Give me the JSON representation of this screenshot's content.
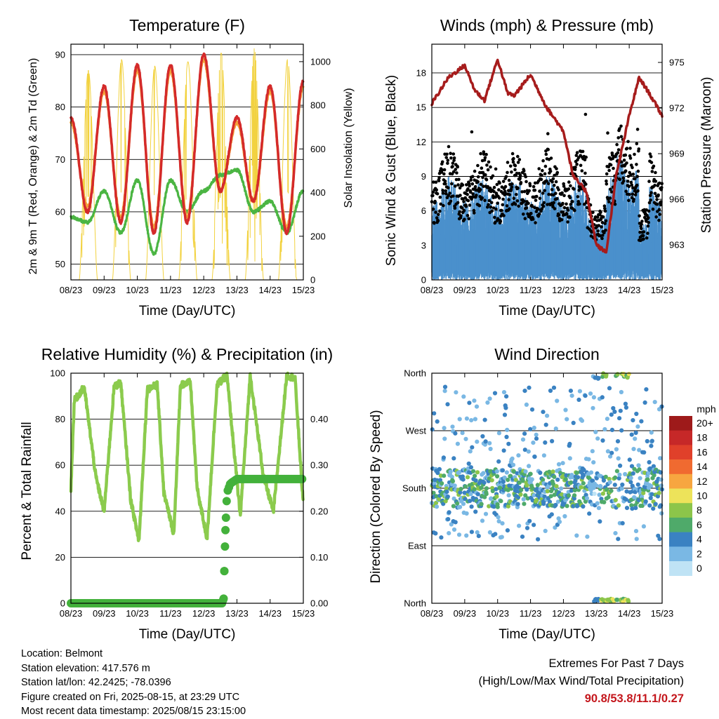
{
  "chart_data": [
    {
      "type": "line",
      "title": "Temperature (F)",
      "xlabel": "Time (Day/UTC)",
      "ylabel": "2m & 9m T (Red, Orange) & 2m Td (Green)",
      "y2label": "Solar Insolation (Yellow)",
      "x_ticks": [
        "08/23",
        "09/23",
        "10/23",
        "11/23",
        "12/23",
        "13/23",
        "14/23",
        "15/23"
      ],
      "y_ticks": [
        50,
        60,
        70,
        80,
        90
      ],
      "y2_ticks": [
        0,
        200,
        400,
        600,
        800,
        1000
      ],
      "ylim": [
        47,
        92
      ],
      "y2lim": [
        0,
        1080
      ],
      "grid": "horizontal",
      "series": [
        {
          "name": "2m T",
          "color": "#d42a2a",
          "values": [
            78,
            60,
            84,
            58,
            88,
            56,
            88,
            58,
            90,
            64,
            78,
            62,
            84,
            56,
            85
          ]
        },
        {
          "name": "9m T",
          "color": "#f4a23a",
          "values": [
            77,
            61,
            83,
            59,
            87,
            57,
            87,
            59,
            89,
            64,
            77,
            62,
            83,
            57,
            84
          ]
        },
        {
          "name": "2m Td",
          "color": "#4bb543",
          "values": [
            59,
            58,
            64,
            56,
            66,
            52,
            66,
            60,
            64,
            67,
            68,
            60,
            62,
            56,
            64
          ]
        },
        {
          "name": "Solar Insolation",
          "color": "#f2d240",
          "axis": "y2",
          "peaks": [
            960,
            1010,
            980,
            1000,
            1040,
            1060,
            1010,
            980
          ]
        }
      ]
    },
    {
      "type": "line",
      "title": "Winds (mph) & Pressure (mb)",
      "xlabel": "Time (Day/UTC)",
      "ylabel": "Sonic Wind & Gust (Blue, Black)",
      "y2label": "Station Pressure (Maroon)",
      "x_ticks": [
        "08/23",
        "09/23",
        "10/23",
        "11/23",
        "12/23",
        "13/23",
        "14/23",
        "15/23"
      ],
      "y_ticks": [
        0,
        3,
        6,
        9,
        12,
        15,
        18
      ],
      "y2_ticks": [
        963,
        966,
        969,
        972,
        975
      ],
      "ylim": [
        0,
        20.5
      ],
      "y2lim": [
        960.7,
        976.2
      ],
      "grid": "horizontal",
      "series": [
        {
          "name": "Station Pressure",
          "color": "#a61c1c",
          "axis": "y2",
          "x": [
            0,
            0.5,
            1,
            1.3,
            1.6,
            2,
            2.3,
            2.5,
            3,
            3.5,
            4,
            4.3,
            4.7,
            5,
            5.3,
            5.6,
            6,
            6.3,
            6.6,
            7
          ],
          "values": [
            972.3,
            974.0,
            974.8,
            973.2,
            972.5,
            975.2,
            973.0,
            972.8,
            974.2,
            972.0,
            970.5,
            967.5,
            966.5,
            963.0,
            962.5,
            967.5,
            971.5,
            974.0,
            973.0,
            971.5
          ]
        },
        {
          "name": "Sonic Wind",
          "color": "#4a90cc"
        },
        {
          "name": "Gust",
          "color": "#000000"
        }
      ]
    },
    {
      "type": "line",
      "title": "Relative Humidity (%) & Precipitation (in)",
      "xlabel": "Time (Day/UTC)",
      "ylabel": "Percent & Total Rainfall",
      "x_ticks": [
        "08/23",
        "09/23",
        "10/23",
        "11/23",
        "12/23",
        "13/23",
        "14/23",
        "15/23"
      ],
      "y_ticks": [
        0,
        20,
        40,
        60,
        80,
        100
      ],
      "y2_ticks": [
        "0.00",
        "0.10",
        "0.20",
        "0.30",
        "0.40"
      ],
      "ylim": [
        0,
        100
      ],
      "y2lim": [
        0,
        0.5
      ],
      "grid": "horizontal",
      "series": [
        {
          "name": "Relative Humidity",
          "color": "#8bcb4d",
          "x": [
            0,
            0.1,
            0.4,
            0.75,
            1,
            1.3,
            1.5,
            1.8,
            2.05,
            2.3,
            2.6,
            2.8,
            3.1,
            3.3,
            3.6,
            3.8,
            4.1,
            4.4,
            4.7,
            5.1,
            5.4,
            5.8,
            6.1,
            6.5,
            6.75,
            7
          ],
          "values": [
            50,
            88,
            94,
            55,
            40,
            94,
            96,
            45,
            27,
            93,
            95,
            48,
            30,
            95,
            96,
            50,
            28,
            95,
            99,
            38,
            99,
            55,
            40,
            99,
            98,
            42
          ]
        },
        {
          "name": "Total Precipitation",
          "color": "#43b13b",
          "axis": "y2",
          "x": [
            0,
            4.55,
            4.6,
            4.62,
            4.65,
            4.7,
            4.8,
            5,
            5.5,
            6,
            6.5,
            7
          ],
          "values": [
            0,
            0,
            0.01,
            0.07,
            0.15,
            0.24,
            0.26,
            0.27,
            0.27,
            0.27,
            0.27,
            0.27
          ]
        }
      ]
    },
    {
      "type": "scatter",
      "title": "Wind Direction",
      "xlabel": "Time (Day/UTC)",
      "ylabel": "Direction (Colored By Speed)",
      "x_ticks": [
        "08/23",
        "09/23",
        "10/23",
        "11/23",
        "12/23",
        "13/23",
        "14/23",
        "15/23"
      ],
      "y_ticks": [
        "North",
        "East",
        "South",
        "West",
        "North"
      ],
      "grid": "horizontal",
      "legend": {
        "title": "mph",
        "placement": "right",
        "labels": [
          "20+",
          "18",
          "16",
          "14",
          "12",
          "10",
          "8",
          "6",
          "4",
          "2",
          "0"
        ],
        "colors": [
          "#9e1a1a",
          "#c62828",
          "#e0402a",
          "#f06a30",
          "#f7a640",
          "#ede35a",
          "#8cc54a",
          "#4faa6a",
          "#3a82c2",
          "#7ab8e4",
          "#bfe3f5"
        ]
      }
    }
  ],
  "info": {
    "location": "Location: Belmont",
    "elevation": "Station elevation: 417.576 m",
    "latlon": "Station lat/lon: 42.2425; -78.0396",
    "created": "Figure created on Fri, 2025-08-15, at 23:29 UTC",
    "recent": "Most recent data timestamp: 2025/08/15 23:15:00"
  },
  "extremes": {
    "line1": "Extremes For Past 7 Days",
    "line2": "(High/Low/Max Wind/Total Precipitation)",
    "value": "90.8/53.8/11.1/0.27"
  }
}
